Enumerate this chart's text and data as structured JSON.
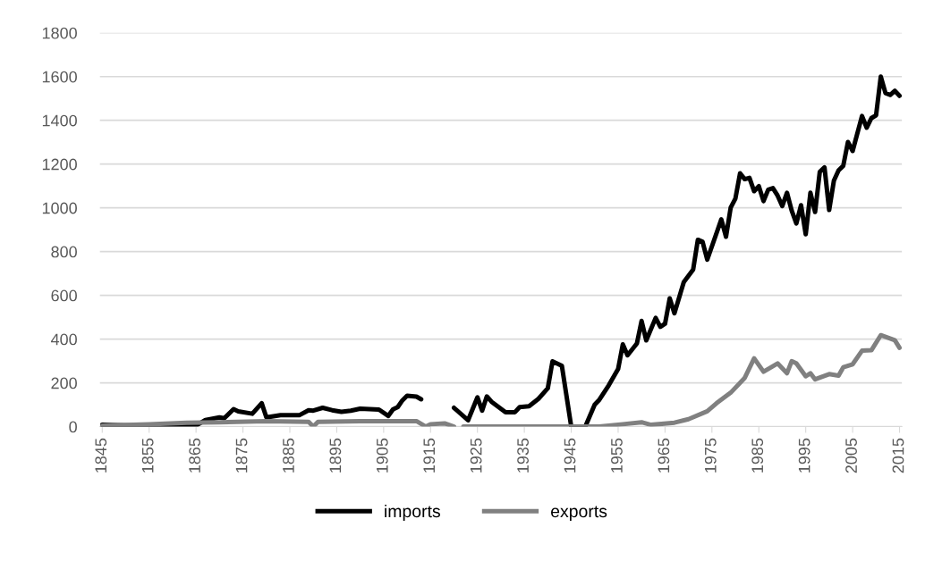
{
  "chart_data": {
    "type": "line",
    "xlim": [
      1844.5,
      2015.5
    ],
    "xticks": [
      1845,
      1855,
      1865,
      1875,
      1885,
      1895,
      1905,
      1915,
      1925,
      1935,
      1945,
      1955,
      1965,
      1975,
      1985,
      1995,
      2005,
      2015
    ],
    "ylim": [
      0,
      1800
    ],
    "yticks": [
      0,
      200,
      400,
      600,
      800,
      1000,
      1200,
      1400,
      1600,
      1800
    ],
    "grid": "y",
    "legend": "bottom",
    "marker": "none",
    "line_style": "solid",
    "series": [
      {
        "name": "imports",
        "color": "#000000",
        "x": [
          1845,
          1850,
          1855,
          1860,
          1865,
          1867,
          1870,
          1871,
          1873,
          1874,
          1877,
          1879,
          1880,
          1883,
          1887,
          1889,
          1890,
          1892,
          1894,
          1896,
          1898,
          1900,
          1904,
          1906,
          1907,
          1908,
          1909,
          1910,
          1912,
          1913,
          1916,
          1920,
          1923,
          1925,
          1926,
          1927,
          1928,
          1931,
          1933,
          1934,
          1936,
          1938,
          1940,
          1941,
          1943,
          1945,
          1946,
          1947,
          1948,
          1950,
          1951,
          1953,
          1955,
          1956,
          1957,
          1959,
          1960,
          1961,
          1963,
          1964,
          1965,
          1966,
          1967,
          1969,
          1971,
          1972,
          1973,
          1974,
          1977,
          1978,
          1979,
          1980,
          1981,
          1982,
          1983,
          1984,
          1985,
          1986,
          1987,
          1988,
          1989,
          1990,
          1991,
          1992,
          1993,
          1994,
          1995,
          1996,
          1997,
          1998,
          1999,
          2000,
          2001,
          2002,
          2003,
          2004,
          2005,
          2007,
          2008,
          2009,
          2010,
          2011,
          2012,
          2013,
          2014,
          2015
        ],
        "values": [
          8,
          5,
          5,
          5,
          5,
          30,
          42,
          38,
          80,
          70,
          59,
          107,
          42,
          52,
          52,
          75,
          73,
          86,
          75,
          68,
          73,
          82,
          78,
          49,
          79,
          89,
          120,
          141,
          137,
          125,
          null,
          86,
          29,
          134,
          73,
          138,
          114,
          66,
          66,
          89,
          93,
          127,
          175,
          298,
          278,
          0,
          0,
          0,
          0,
          100,
          123,
          189,
          264,
          376,
          326,
          380,
          483,
          394,
          497,
          456,
          470,
          586,
          518,
          661,
          718,
          854,
          845,
          763,
          947,
          868,
          1001,
          1042,
          1158,
          1131,
          1137,
          1076,
          1099,
          1031,
          1083,
          1090,
          1056,
          1008,
          1069,
          988,
          929,
          1012,
          879,
          1069,
          981,
          1165,
          1185,
          990,
          1124,
          1171,
          1192,
          1301,
          1260,
          1420,
          1366,
          1410,
          1423,
          1600,
          1525,
          1516,
          1535,
          1512
        ]
      },
      {
        "name": "exports",
        "color": "#808080",
        "x": [
          1845,
          1855,
          1863,
          1870,
          1880,
          1889,
          1890,
          1891,
          1900,
          1912,
          1914,
          1915,
          1918,
          1920,
          1921,
          1922,
          1935,
          1951,
          1956,
          1960,
          1962,
          1967,
          1970,
          1974,
          1976,
          1979,
          1982,
          1984,
          1986,
          1989,
          1991,
          1992,
          1993,
          1995,
          1996,
          1997,
          2000,
          2002,
          2003,
          2005,
          2007,
          2009,
          2011,
          2014,
          2015
        ],
        "values": [
          4,
          10,
          18,
          20,
          25,
          22,
          0,
          22,
          25,
          25,
          0,
          11,
          15,
          0,
          null,
          0,
          0,
          0,
          11,
          20,
          8,
          18,
          34,
          70,
          107,
          155,
          223,
          312,
          251,
          289,
          244,
          299,
          289,
          230,
          244,
          216,
          240,
          233,
          271,
          285,
          347,
          349,
          418,
          395,
          360
        ]
      }
    ]
  }
}
